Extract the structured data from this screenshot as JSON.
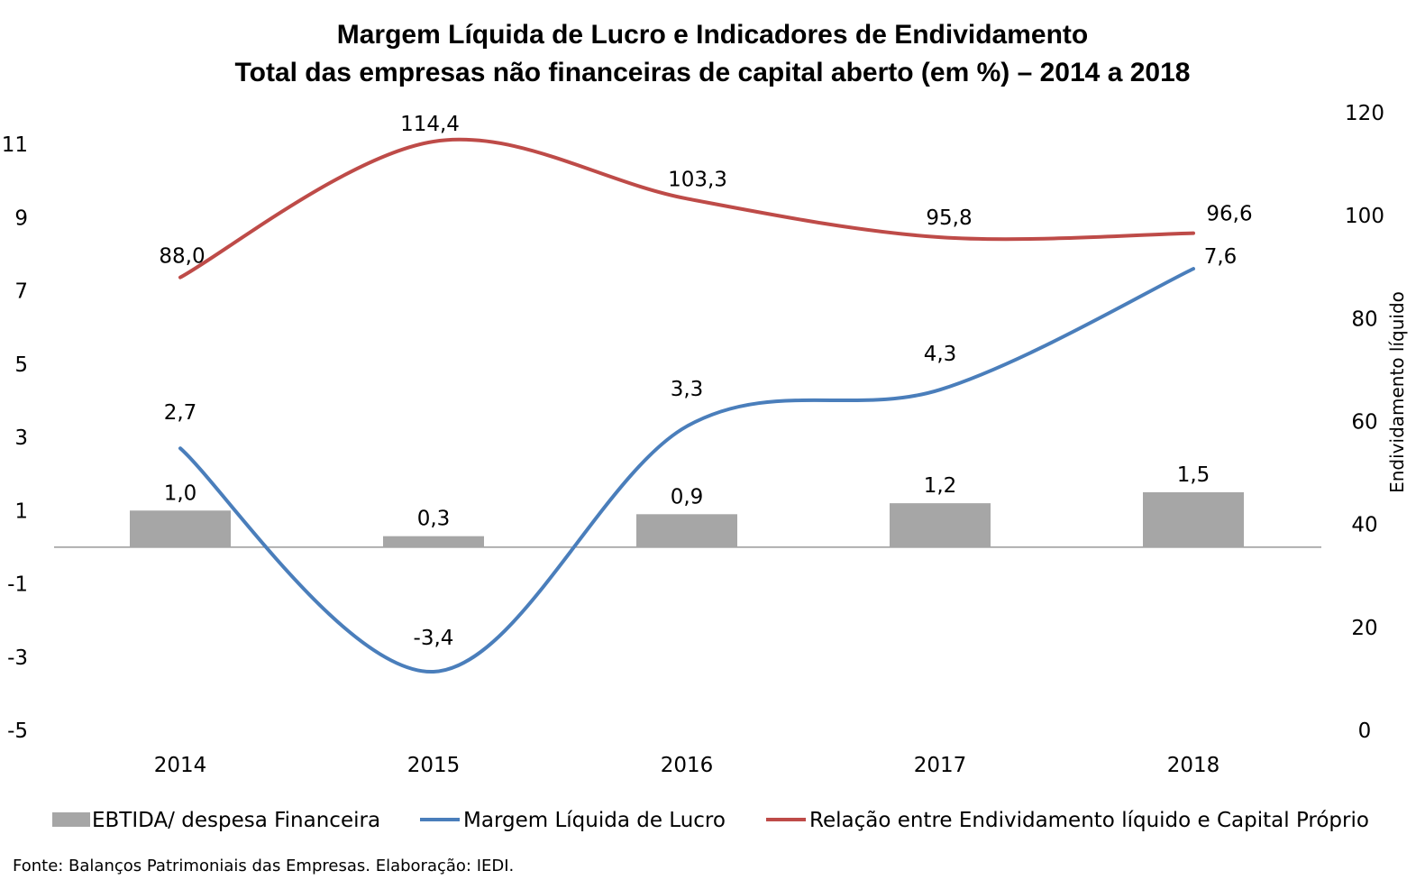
{
  "title_line1": "Margem Líquida de Lucro e Indicadores de Endividamento",
  "title_line2": "Total das empresas não financeiras de capital aberto (em %) – 2014 a 2018",
  "source": "Fonte: Balanços Patrimoniais das Empresas. Elaboração: IEDI.",
  "chart_data": {
    "type": "bar+line",
    "title": "Margem Líquida de Lucro e Indicadores de Endividamento — Total das empresas não financeiras de capital aberto (em %) – 2014 a 2018",
    "categories": [
      "2014",
      "2015",
      "2016",
      "2017",
      "2018"
    ],
    "y_left": {
      "min": -5,
      "max": 11,
      "ticks": [
        -5,
        -3,
        -1,
        1,
        3,
        5,
        7,
        9,
        11
      ]
    },
    "y_right": {
      "label": "Endividamento líquido",
      "min": 0,
      "max": 120,
      "ticks": [
        0,
        20,
        40,
        60,
        80,
        100,
        120
      ]
    },
    "series": [
      {
        "name": "EBTIDA/ despesa Financeira",
        "kind": "bar",
        "axis": "left",
        "color": "#a6a6a6",
        "values": [
          1.0,
          0.3,
          0.9,
          1.2,
          1.5
        ],
        "labels": [
          "1,0",
          "0,3",
          "0,9",
          "1,2",
          "1,5"
        ]
      },
      {
        "name": "Margem Líquida de Lucro",
        "kind": "line",
        "axis": "left",
        "color": "#4a7ebb",
        "values": [
          2.7,
          -3.4,
          3.3,
          4.3,
          7.6
        ],
        "labels": [
          "2,7",
          "-3,4",
          "3,3",
          "4,3",
          "7,6"
        ]
      },
      {
        "name": "Relação entre Endividamento líquido e Capital Próprio",
        "kind": "line",
        "axis": "right",
        "color": "#be4b48",
        "values": [
          88.0,
          114.4,
          103.3,
          95.8,
          96.6
        ],
        "labels": [
          "88,0",
          "114,4",
          "103,3",
          "95,8",
          "96,6"
        ]
      }
    ],
    "legend": "bottom",
    "grid": false
  }
}
